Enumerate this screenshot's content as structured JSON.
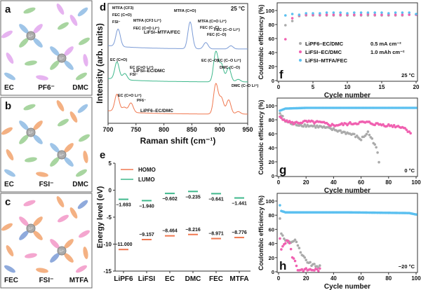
{
  "panels_abc": [
    {
      "letter": "a",
      "labels": [
        "EC",
        "PF6⁻",
        "DMC"
      ],
      "colors": [
        "#9fc5e8",
        "#e6b3f0",
        "#a8d5a0"
      ]
    },
    {
      "letter": "b",
      "labels": [
        "EC",
        "FSI⁻",
        "DMC"
      ],
      "colors": [
        "#9fc5e8",
        "#f4b183",
        "#a8d5a0"
      ]
    },
    {
      "letter": "c",
      "labels": [
        "FEC",
        "FSI⁻",
        "MTFA"
      ],
      "colors": [
        "#8faadc",
        "#f4b183",
        "#f4a6cf"
      ]
    }
  ],
  "li_label": "Li⁺",
  "chart_data": [
    {
      "id": "d",
      "type": "line",
      "title": "",
      "annotation": "25 °C",
      "xlabel": "Raman shift (cm⁻¹)",
      "ylabel": "Intensity (arb. units)",
      "xlim": [
        700,
        950
      ],
      "xticks": [
        700,
        750,
        800,
        850,
        900,
        950
      ],
      "series": [
        {
          "name": "LiFSI–MTFA/FEC",
          "color": "#7b9bd6",
          "peaks": [
            [
              718,
              0.55
            ],
            [
              847,
              0.85
            ],
            [
              875,
              0.2
            ],
            [
              920,
              0.1
            ]
          ]
        },
        {
          "name": "LiFSI–EC/DMC",
          "color": "#3fb88c",
          "peaks": [
            [
              716,
              0.55
            ],
            [
              730,
              0.2
            ],
            [
              893,
              0.95
            ],
            [
              903,
              0.55
            ],
            [
              916,
              0.45
            ],
            [
              933,
              0.08
            ]
          ]
        },
        {
          "name": "LiPF6–EC/DMC",
          "color": "#f07850",
          "peaks": [
            [
              716,
              0.55
            ],
            [
              729,
              0.15
            ],
            [
              741,
              0.3
            ],
            [
              893,
              0.95
            ],
            [
              903,
              0.5
            ],
            [
              916,
              0.45
            ],
            [
              933,
              0.08
            ]
          ]
        }
      ],
      "annotations": [
        "MTFA (CF3)",
        "FEC (C=O)",
        "FSI⁻",
        "MTFA (CF3 Li⁺)",
        "FEC (C=O Li⁺)",
        "MTFA (C=O)",
        "MTFA (C=O Li⁺)",
        "FEC (C–C)",
        "FEC (C–O)",
        "FEC (C–O Li⁺)",
        "EC (C=O)",
        "EC (C=O Li⁺)",
        "FSI⁻",
        "EC (C–O)",
        "EC (C–O Li⁺)",
        "DMC (C–O)",
        "DMC (C–O Li⁺)",
        "EC (C=O Li⁺)",
        "PF6⁻"
      ]
    },
    {
      "id": "e",
      "type": "bar",
      "xlabel": "",
      "ylabel": "Energy level (eV)",
      "ylim": [
        -15,
        5
      ],
      "yticks": [
        5,
        0,
        -5,
        -10,
        -15
      ],
      "categories": [
        "LiPF6",
        "LiFSI",
        "EC",
        "DMC",
        "FEC",
        "MTFA"
      ],
      "series": [
        {
          "name": "HOMO",
          "color": "#f07850",
          "values": [
            -11.0,
            -9.157,
            -8.464,
            -8.216,
            -8.971,
            -8.776
          ]
        },
        {
          "name": "LUMO",
          "color": "#3fb88c",
          "values": [
            -1.693,
            -1.94,
            -0.602,
            -0.235,
            -0.641,
            -1.441
          ]
        }
      ]
    },
    {
      "id": "f",
      "type": "scatter",
      "annotation": "25 °C",
      "xlabel": "Cycle number",
      "ylabel": "Coulombic efficiency (%)",
      "xlim": [
        0,
        20
      ],
      "ylim": [
        0,
        100
      ],
      "xticks": [
        0,
        5,
        10,
        15,
        20
      ],
      "yticks": [
        0,
        20,
        40,
        60,
        80,
        100
      ],
      "legend": [
        "LiPF6–EC/DMC",
        "LiFSI–EC/DMC",
        "LiFSI–MTFA/FEC"
      ],
      "conditions": [
        "0.5 mA cm⁻²",
        "1.0 mAh cm⁻²"
      ],
      "series": [
        {
          "name": "LiPF6–EC/DMC",
          "color": "#aaaaaa",
          "values": [
            79,
            85,
            92,
            93,
            93,
            93,
            93,
            93,
            93,
            93,
            93,
            93,
            93,
            93,
            93,
            93,
            93,
            93,
            94,
            94
          ]
        },
        {
          "name": "LiFSI–EC/DMC",
          "color": "#f060b0",
          "values": [
            59,
            89,
            93,
            94,
            94,
            94,
            94,
            94,
            94,
            94,
            94,
            94,
            95,
            94,
            94,
            94,
            94,
            94,
            94,
            94
          ]
        },
        {
          "name": "LiFSI–MTFA/FEC",
          "color": "#5bc0f0",
          "values": [
            93,
            95,
            94,
            96,
            96,
            96,
            97,
            97,
            97,
            96,
            97,
            97,
            97,
            97,
            97,
            96,
            97,
            97,
            97,
            95
          ]
        }
      ]
    },
    {
      "id": "g",
      "type": "scatter",
      "annotation": "0 °C",
      "xlabel": "Cycle number",
      "ylabel": "Coulombic efficiency (%)",
      "xlim": [
        0,
        100
      ],
      "ylim": [
        0,
        100
      ],
      "xticks": [
        0,
        20,
        40,
        60,
        80,
        100
      ],
      "yticks": [
        0,
        20,
        40,
        60,
        80,
        100
      ],
      "series": [
        {
          "name": "LiPF6–EC/DMC",
          "color": "#aaaaaa",
          "trend": [
            [
              1,
              89
            ],
            [
              5,
              78
            ],
            [
              10,
              74
            ],
            [
              20,
              72
            ],
            [
              30,
              70
            ],
            [
              40,
              66
            ],
            [
              50,
              61
            ],
            [
              55,
              58
            ],
            [
              60,
              52
            ],
            [
              65,
              62
            ],
            [
              68,
              52
            ],
            [
              70,
              45
            ],
            [
              72,
              33
            ],
            [
              73,
              18
            ]
          ]
        },
        {
          "name": "LiFSI–EC/DMC",
          "color": "#f060b0",
          "trend": [
            [
              1,
              84
            ],
            [
              5,
              80
            ],
            [
              10,
              75
            ],
            [
              20,
              77
            ],
            [
              30,
              76
            ],
            [
              40,
              72
            ],
            [
              50,
              74
            ],
            [
              60,
              76
            ],
            [
              65,
              76
            ],
            [
              70,
              74
            ],
            [
              80,
              72
            ],
            [
              90,
              70
            ],
            [
              96,
              62
            ]
          ]
        },
        {
          "name": "LiFSI–MTFA/FEC",
          "color": "#5bc0f0",
          "trend": [
            [
              1,
              93
            ],
            [
              5,
              96
            ],
            [
              20,
              97
            ],
            [
              60,
              97
            ],
            [
              100,
              97
            ]
          ]
        }
      ]
    },
    {
      "id": "h",
      "type": "scatter",
      "annotation": "−20 °C",
      "xlabel": "Cycle number",
      "ylabel": "Coulombic efficiency (%)",
      "xlim": [
        0,
        100
      ],
      "ylim": [
        0,
        100
      ],
      "xticks": [
        0,
        20,
        40,
        60,
        80,
        100
      ],
      "yticks": [
        0,
        20,
        40,
        60,
        80,
        100
      ],
      "series": [
        {
          "name": "LiPF6–EC/DMC",
          "color": "#aaaaaa",
          "trend": [
            [
              1,
              75
            ],
            [
              2,
              55
            ],
            [
              4,
              46
            ],
            [
              8,
              42
            ],
            [
              12,
              44
            ],
            [
              14,
              38
            ],
            [
              16,
              26
            ],
            [
              20,
              16
            ],
            [
              24,
              10
            ],
            [
              30,
              7
            ]
          ]
        },
        {
          "name": "LiFSI–EC/DMC",
          "color": "#f060b0",
          "trend": [
            [
              1,
              46
            ],
            [
              2,
              31
            ],
            [
              4,
              40
            ],
            [
              7,
              45
            ],
            [
              9,
              32
            ],
            [
              10,
              22
            ],
            [
              12,
              15
            ],
            [
              14,
              3
            ],
            [
              20,
              3
            ],
            [
              30,
              3
            ]
          ]
        },
        {
          "name": "LiFSI–MTFA/FEC",
          "color": "#5bc0f0",
          "trend": [
            [
              1,
              94
            ],
            [
              2,
              86
            ],
            [
              5,
              84
            ],
            [
              50,
              84
            ],
            [
              95,
              83
            ],
            [
              100,
              81
            ]
          ]
        }
      ]
    }
  ]
}
